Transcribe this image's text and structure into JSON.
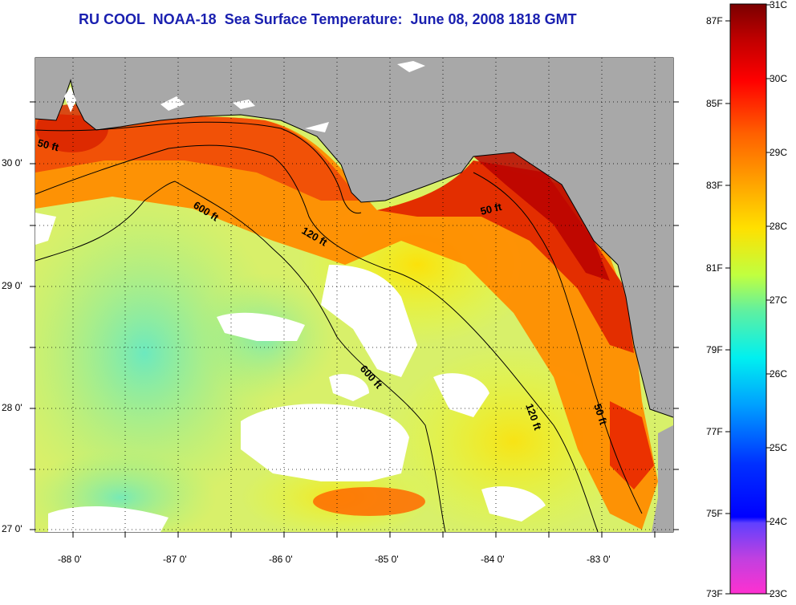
{
  "title": "RU COOL  NOAA-18  Sea Surface Temperature:  June 08, 2008 1818 GMT",
  "map": {
    "lon_ticks": [
      "-88 0'",
      "-87 0'",
      "-86 0'",
      "-85 0'",
      "-84 0'",
      "-83 0'"
    ],
    "lat_ticks": [
      "30 0'",
      "29 0'",
      "28 0'",
      "27 0'"
    ],
    "contours": {
      "c600_a": "600 ft",
      "c120_a": "120 ft",
      "c50_a": "50 ft",
      "c600_b": "600 ft",
      "c120_b": "120 ft",
      "c50_b": "50 ft",
      "c50_c": "50 ft"
    },
    "colors": {
      "land": "#a8a8a8",
      "cloud": "#ffffff",
      "contour": "#000000",
      "title": "#1a20b0"
    }
  },
  "colorbar": {
    "fahrenheit": [
      "87F",
      "85F",
      "83F",
      "81F",
      "79F",
      "77F",
      "75F",
      "73F"
    ],
    "celsius": [
      "31C",
      "30C",
      "29C",
      "28C",
      "27C",
      "26C",
      "25C",
      "24C",
      "23C"
    ],
    "range_c": [
      23,
      31
    ],
    "range_f": [
      73,
      87
    ]
  }
}
